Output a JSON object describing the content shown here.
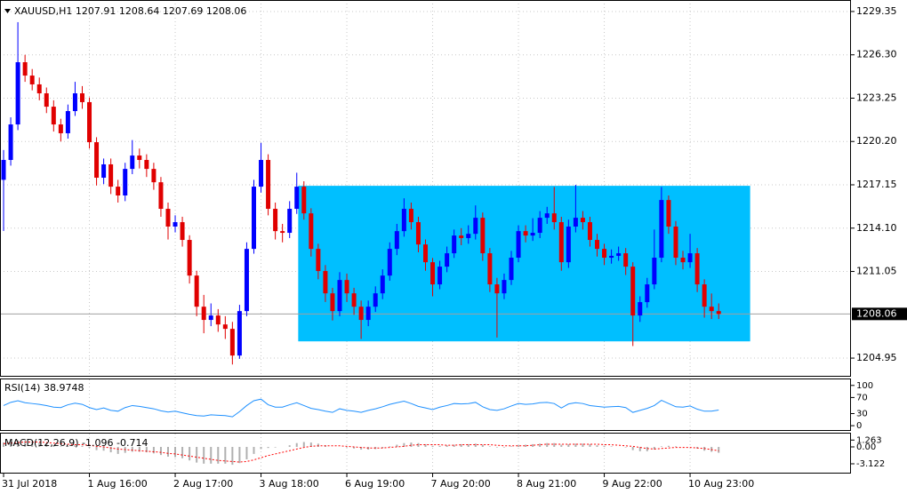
{
  "header": {
    "symbol": "XAUUSD,H1",
    "ohlc": [
      1207.91,
      1208.64,
      1207.69,
      1208.06
    ]
  },
  "chart_data": [
    {
      "type": "candlestick",
      "up_color": "#0000ff",
      "down_color": "#e00000",
      "grid": true,
      "xlim": [
        -0.5,
        118.5
      ],
      "ylim": [
        1203.64,
        1230.16
      ],
      "yticks": [
        1229.35,
        {
          "value": 1226.3,
          "label": "1226.30"
        },
        1223.25,
        {
          "value": 1220.2,
          "label": "1220.20"
        },
        1217.15,
        {
          "value": 1214.1,
          "label": "1214.10"
        },
        1211.05,
        1204.95
      ],
      "xticks": [
        {
          "value": 0,
          "label": "31 Jul 2018"
        },
        {
          "value": 12,
          "label": "1 Aug 16:00"
        },
        {
          "value": 24,
          "label": "2 Aug 17:00"
        },
        {
          "value": 36,
          "label": "3 Aug 18:00"
        },
        {
          "value": 48,
          "label": "6 Aug 19:00"
        },
        {
          "value": 60,
          "label": "7 Aug 20:00"
        },
        {
          "value": 72,
          "label": "8 Aug 21:00"
        },
        {
          "value": 84,
          "label": "9 Aug 22:00"
        },
        {
          "value": 96,
          "label": "10 Aug 23:00"
        }
      ],
      "rectangle": {
        "x": [
          41.2,
          104.4
        ],
        "y": [
          1206.13,
          1217.08
        ],
        "color": "#00bfff"
      },
      "ohlc": [
        [
          1217.5,
          1219.6,
          1213.9,
          1218.9
        ],
        [
          1218.9,
          1221.9,
          1218.5,
          1221.4
        ],
        [
          1221.4,
          1228.6,
          1221.0,
          1225.78
        ],
        [
          1225.78,
          1226.3,
          1224.4,
          1224.84
        ],
        [
          1224.84,
          1225.3,
          1223.8,
          1224.22
        ],
        [
          1224.22,
          1224.7,
          1223.1,
          1223.59
        ],
        [
          1223.59,
          1224.0,
          1222.2,
          1222.65
        ],
        [
          1222.65,
          1223.1,
          1220.9,
          1221.4
        ],
        [
          1221.4,
          1221.8,
          1220.2,
          1220.78
        ],
        [
          1220.78,
          1222.8,
          1220.4,
          1222.34
        ],
        [
          1222.34,
          1224.4,
          1222.0,
          1223.59
        ],
        [
          1223.59,
          1224.1,
          1222.5,
          1222.97
        ],
        [
          1222.97,
          1223.3,
          1219.7,
          1220.15
        ],
        [
          1220.15,
          1220.5,
          1217.1,
          1217.65
        ],
        [
          1217.65,
          1219.0,
          1217.2,
          1218.59
        ],
        [
          1218.59,
          1219.0,
          1216.5,
          1217.02
        ],
        [
          1217.02,
          1217.5,
          1215.9,
          1216.4
        ],
        [
          1216.4,
          1218.7,
          1216.0,
          1218.27
        ],
        [
          1218.27,
          1220.3,
          1217.9,
          1219.21
        ],
        [
          1219.21,
          1219.7,
          1218.3,
          1218.9
        ],
        [
          1218.9,
          1219.3,
          1217.7,
          1218.27
        ],
        [
          1218.27,
          1218.7,
          1216.8,
          1217.33
        ],
        [
          1217.33,
          1217.7,
          1214.9,
          1215.46
        ],
        [
          1215.46,
          1215.9,
          1213.3,
          1214.21
        ],
        [
          1214.21,
          1215.0,
          1213.8,
          1214.52
        ],
        [
          1214.52,
          1214.9,
          1212.8,
          1213.27
        ],
        [
          1213.27,
          1213.6,
          1210.2,
          1210.76
        ],
        [
          1210.76,
          1211.1,
          1207.9,
          1208.57
        ],
        [
          1208.57,
          1209.4,
          1206.7,
          1207.64
        ],
        [
          1207.64,
          1208.8,
          1207.2,
          1207.95
        ],
        [
          1207.95,
          1208.4,
          1206.8,
          1207.32
        ],
        [
          1207.32,
          1207.9,
          1206.3,
          1207.01
        ],
        [
          1207.01,
          1207.5,
          1204.5,
          1205.13
        ],
        [
          1205.13,
          1208.7,
          1204.9,
          1208.26
        ],
        [
          1208.26,
          1213.1,
          1207.9,
          1212.64
        ],
        [
          1212.64,
          1217.5,
          1212.3,
          1217.02
        ],
        [
          1217.02,
          1220.1,
          1216.6,
          1218.9
        ],
        [
          1218.9,
          1219.3,
          1215.0,
          1215.46
        ],
        [
          1215.46,
          1215.9,
          1213.3,
          1213.89
        ],
        [
          1213.89,
          1214.4,
          1213.1,
          1213.77
        ],
        [
          1213.77,
          1216.0,
          1213.4,
          1215.46
        ],
        [
          1215.46,
          1218.0,
          1215.1,
          1217.02
        ],
        [
          1217.02,
          1217.4,
          1214.7,
          1215.14
        ],
        [
          1215.14,
          1215.5,
          1212.1,
          1212.64
        ],
        [
          1212.64,
          1213.0,
          1210.5,
          1211.08
        ],
        [
          1211.08,
          1211.5,
          1208.9,
          1209.51
        ],
        [
          1209.51,
          1209.9,
          1207.6,
          1208.26
        ],
        [
          1208.26,
          1211.0,
          1207.9,
          1210.45
        ],
        [
          1210.45,
          1210.9,
          1208.9,
          1209.51
        ],
        [
          1209.51,
          1209.9,
          1208.0,
          1208.57
        ],
        [
          1208.57,
          1209.0,
          1206.3,
          1207.64
        ],
        [
          1207.64,
          1209.0,
          1207.2,
          1208.57
        ],
        [
          1208.57,
          1210.0,
          1208.2,
          1209.51
        ],
        [
          1209.51,
          1211.2,
          1209.1,
          1210.76
        ],
        [
          1210.76,
          1213.1,
          1210.4,
          1212.64
        ],
        [
          1212.64,
          1214.4,
          1212.2,
          1213.89
        ],
        [
          1213.89,
          1216.2,
          1213.5,
          1215.46
        ],
        [
          1215.46,
          1215.9,
          1214.0,
          1214.52
        ],
        [
          1214.52,
          1214.9,
          1212.4,
          1212.95
        ],
        [
          1212.95,
          1213.3,
          1211.1,
          1211.7
        ],
        [
          1211.7,
          1212.0,
          1209.3,
          1210.14
        ],
        [
          1210.14,
          1211.8,
          1209.8,
          1211.39
        ],
        [
          1211.39,
          1212.8,
          1211.0,
          1212.33
        ],
        [
          1212.33,
          1214.0,
          1212.0,
          1213.58
        ],
        [
          1213.58,
          1214.1,
          1212.9,
          1213.4
        ],
        [
          1213.4,
          1214.3,
          1213.0,
          1213.7
        ],
        [
          1213.7,
          1215.7,
          1213.3,
          1214.83
        ],
        [
          1214.83,
          1215.2,
          1211.8,
          1212.33
        ],
        [
          1212.33,
          1212.7,
          1209.6,
          1210.14
        ],
        [
          1210.14,
          1210.6,
          1206.4,
          1209.51
        ],
        [
          1209.51,
          1210.9,
          1209.1,
          1210.45
        ],
        [
          1210.45,
          1212.5,
          1210.1,
          1212.02
        ],
        [
          1212.02,
          1214.3,
          1211.7,
          1213.89
        ],
        [
          1213.89,
          1214.3,
          1213.1,
          1213.58
        ],
        [
          1213.58,
          1214.8,
          1213.2,
          1213.77
        ],
        [
          1213.77,
          1215.3,
          1213.4,
          1214.83
        ],
        [
          1214.83,
          1215.6,
          1214.4,
          1215.14
        ],
        [
          1215.14,
          1217.0,
          1214.0,
          1214.52
        ],
        [
          1214.52,
          1214.9,
          1211.1,
          1211.7
        ],
        [
          1211.7,
          1214.7,
          1211.3,
          1214.21
        ],
        [
          1214.21,
          1217.15,
          1213.8,
          1214.83
        ],
        [
          1214.83,
          1215.3,
          1214.0,
          1214.52
        ],
        [
          1214.52,
          1214.9,
          1212.8,
          1213.27
        ],
        [
          1213.27,
          1213.7,
          1212.1,
          1212.64
        ],
        [
          1212.64,
          1213.0,
          1211.5,
          1212.02
        ],
        [
          1212.02,
          1212.6,
          1211.6,
          1212.15
        ],
        [
          1212.15,
          1212.8,
          1211.8,
          1212.33
        ],
        [
          1212.33,
          1212.7,
          1210.8,
          1211.39
        ],
        [
          1211.39,
          1211.7,
          1205.8,
          1207.95
        ],
        [
          1207.95,
          1209.3,
          1207.5,
          1208.89
        ],
        [
          1208.89,
          1210.6,
          1208.5,
          1210.14
        ],
        [
          1210.14,
          1214.0,
          1209.8,
          1212.02
        ],
        [
          1212.02,
          1217.0,
          1211.7,
          1216.08
        ],
        [
          1216.08,
          1216.4,
          1213.7,
          1214.21
        ],
        [
          1214.21,
          1214.6,
          1211.5,
          1212.02
        ],
        [
          1212.02,
          1212.5,
          1211.2,
          1211.7
        ],
        [
          1211.7,
          1213.7,
          1211.3,
          1212.33
        ],
        [
          1212.33,
          1212.7,
          1209.6,
          1210.14
        ],
        [
          1210.14,
          1210.5,
          1207.8,
          1208.57
        ],
        [
          1208.57,
          1209.5,
          1207.7,
          1208.26
        ],
        [
          1208.26,
          1208.8,
          1207.7,
          1208.06
        ]
      ]
    },
    {
      "type": "line",
      "title": "RSI(14)",
      "color": "#1e90ff",
      "xlim": [
        -0.5,
        118.5
      ],
      "ylim": [
        -13,
        115
      ],
      "yticks": [
        100,
        70,
        30,
        0
      ],
      "values": [
        50,
        58,
        62,
        57,
        55,
        53,
        50,
        46,
        45,
        52,
        56,
        53,
        45,
        40,
        44,
        38,
        36,
        45,
        50,
        48,
        45,
        42,
        37,
        34,
        36,
        32,
        28,
        25,
        24,
        27,
        26,
        25,
        22,
        35,
        50,
        62,
        66,
        52,
        46,
        46,
        52,
        57,
        50,
        43,
        40,
        36,
        33,
        42,
        38,
        36,
        33,
        38,
        42,
        47,
        53,
        57,
        61,
        55,
        48,
        44,
        40,
        46,
        50,
        55,
        54,
        55,
        58,
        47,
        40,
        38,
        42,
        49,
        55,
        53,
        54,
        57,
        58,
        55,
        44,
        54,
        57,
        55,
        50,
        48,
        46,
        47,
        48,
        45,
        33,
        38,
        43,
        50,
        63,
        55,
        47,
        46,
        49,
        41,
        36,
        36,
        38.9748
      ]
    },
    {
      "type": "macd",
      "title": "MACD(12,26,9)",
      "xlim": [
        -0.5,
        118.5
      ],
      "ylim": [
        -4.93,
        2.46
      ],
      "yticks": [
        1.263,
        {
          "value": 0,
          "label": "0.00"
        },
        -3.122
      ],
      "series": [
        {
          "color": "#b0b0b0",
          "values": [
            0.8,
            1.0,
            1.2,
            1.1,
            1.0,
            0.8,
            0.6,
            0.3,
            0.1,
            0.2,
            0.3,
            0.2,
            -0.2,
            -0.6,
            -0.7,
            -1.0,
            -1.3,
            -1.1,
            -0.9,
            -0.9,
            -1.0,
            -1.2,
            -1.5,
            -1.8,
            -1.9,
            -2.1,
            -2.5,
            -2.9,
            -3.1,
            -3.1,
            -3.1,
            -3.1,
            -3.3,
            -3.0,
            -2.3,
            -1.3,
            -0.4,
            -0.2,
            -0.1,
            0.0,
            0.3,
            0.7,
            0.9,
            0.8,
            0.6,
            0.3,
            0.0,
            0.0,
            -0.1,
            -0.3,
            -0.5,
            -0.5,
            -0.4,
            -0.2,
            0.1,
            0.4,
            0.7,
            0.8,
            0.7,
            0.5,
            0.2,
            0.2,
            0.3,
            0.4,
            0.5,
            0.5,
            0.6,
            0.4,
            0.1,
            -0.1,
            -0.1,
            0.1,
            0.3,
            0.4,
            0.5,
            0.6,
            0.7,
            0.7,
            0.4,
            0.5,
            0.6,
            0.6,
            0.5,
            0.3,
            0.2,
            0.1,
            0.0,
            -0.1,
            -0.6,
            -0.8,
            -0.8,
            -0.5,
            0.1,
            0.2,
            0.1,
            0.0,
            0.0,
            -0.3,
            -0.7,
            -0.9,
            -1.096
          ]
        },
        {
          "color": "#ff0000",
          "values": [
            0.6,
            0.7,
            0.8,
            0.9,
            0.9,
            0.9,
            0.8,
            0.7,
            0.6,
            0.5,
            0.4,
            0.4,
            0.3,
            0.1,
            0.0,
            -0.2,
            -0.4,
            -0.5,
            -0.6,
            -0.7,
            -0.8,
            -0.9,
            -1.0,
            -1.2,
            -1.3,
            -1.5,
            -1.7,
            -1.9,
            -2.1,
            -2.3,
            -2.5,
            -2.6,
            -2.7,
            -2.8,
            -2.7,
            -2.4,
            -2.0,
            -1.6,
            -1.3,
            -1.0,
            -0.7,
            -0.4,
            -0.1,
            0.1,
            0.2,
            0.2,
            0.2,
            0.2,
            0.1,
            0.0,
            -0.1,
            -0.2,
            -0.2,
            -0.2,
            -0.1,
            0.0,
            0.1,
            0.3,
            0.4,
            0.4,
            0.4,
            0.4,
            0.3,
            0.3,
            0.4,
            0.4,
            0.4,
            0.4,
            0.4,
            0.3,
            0.2,
            0.2,
            0.2,
            0.2,
            0.3,
            0.4,
            0.5,
            0.5,
            0.5,
            0.5,
            0.5,
            0.5,
            0.5,
            0.5,
            0.4,
            0.4,
            0.3,
            0.2,
            0.1,
            -0.1,
            -0.3,
            -0.4,
            -0.3,
            -0.2,
            -0.1,
            -0.1,
            -0.1,
            -0.2,
            -0.3,
            -0.5,
            -0.714
          ]
        }
      ]
    }
  ]
}
